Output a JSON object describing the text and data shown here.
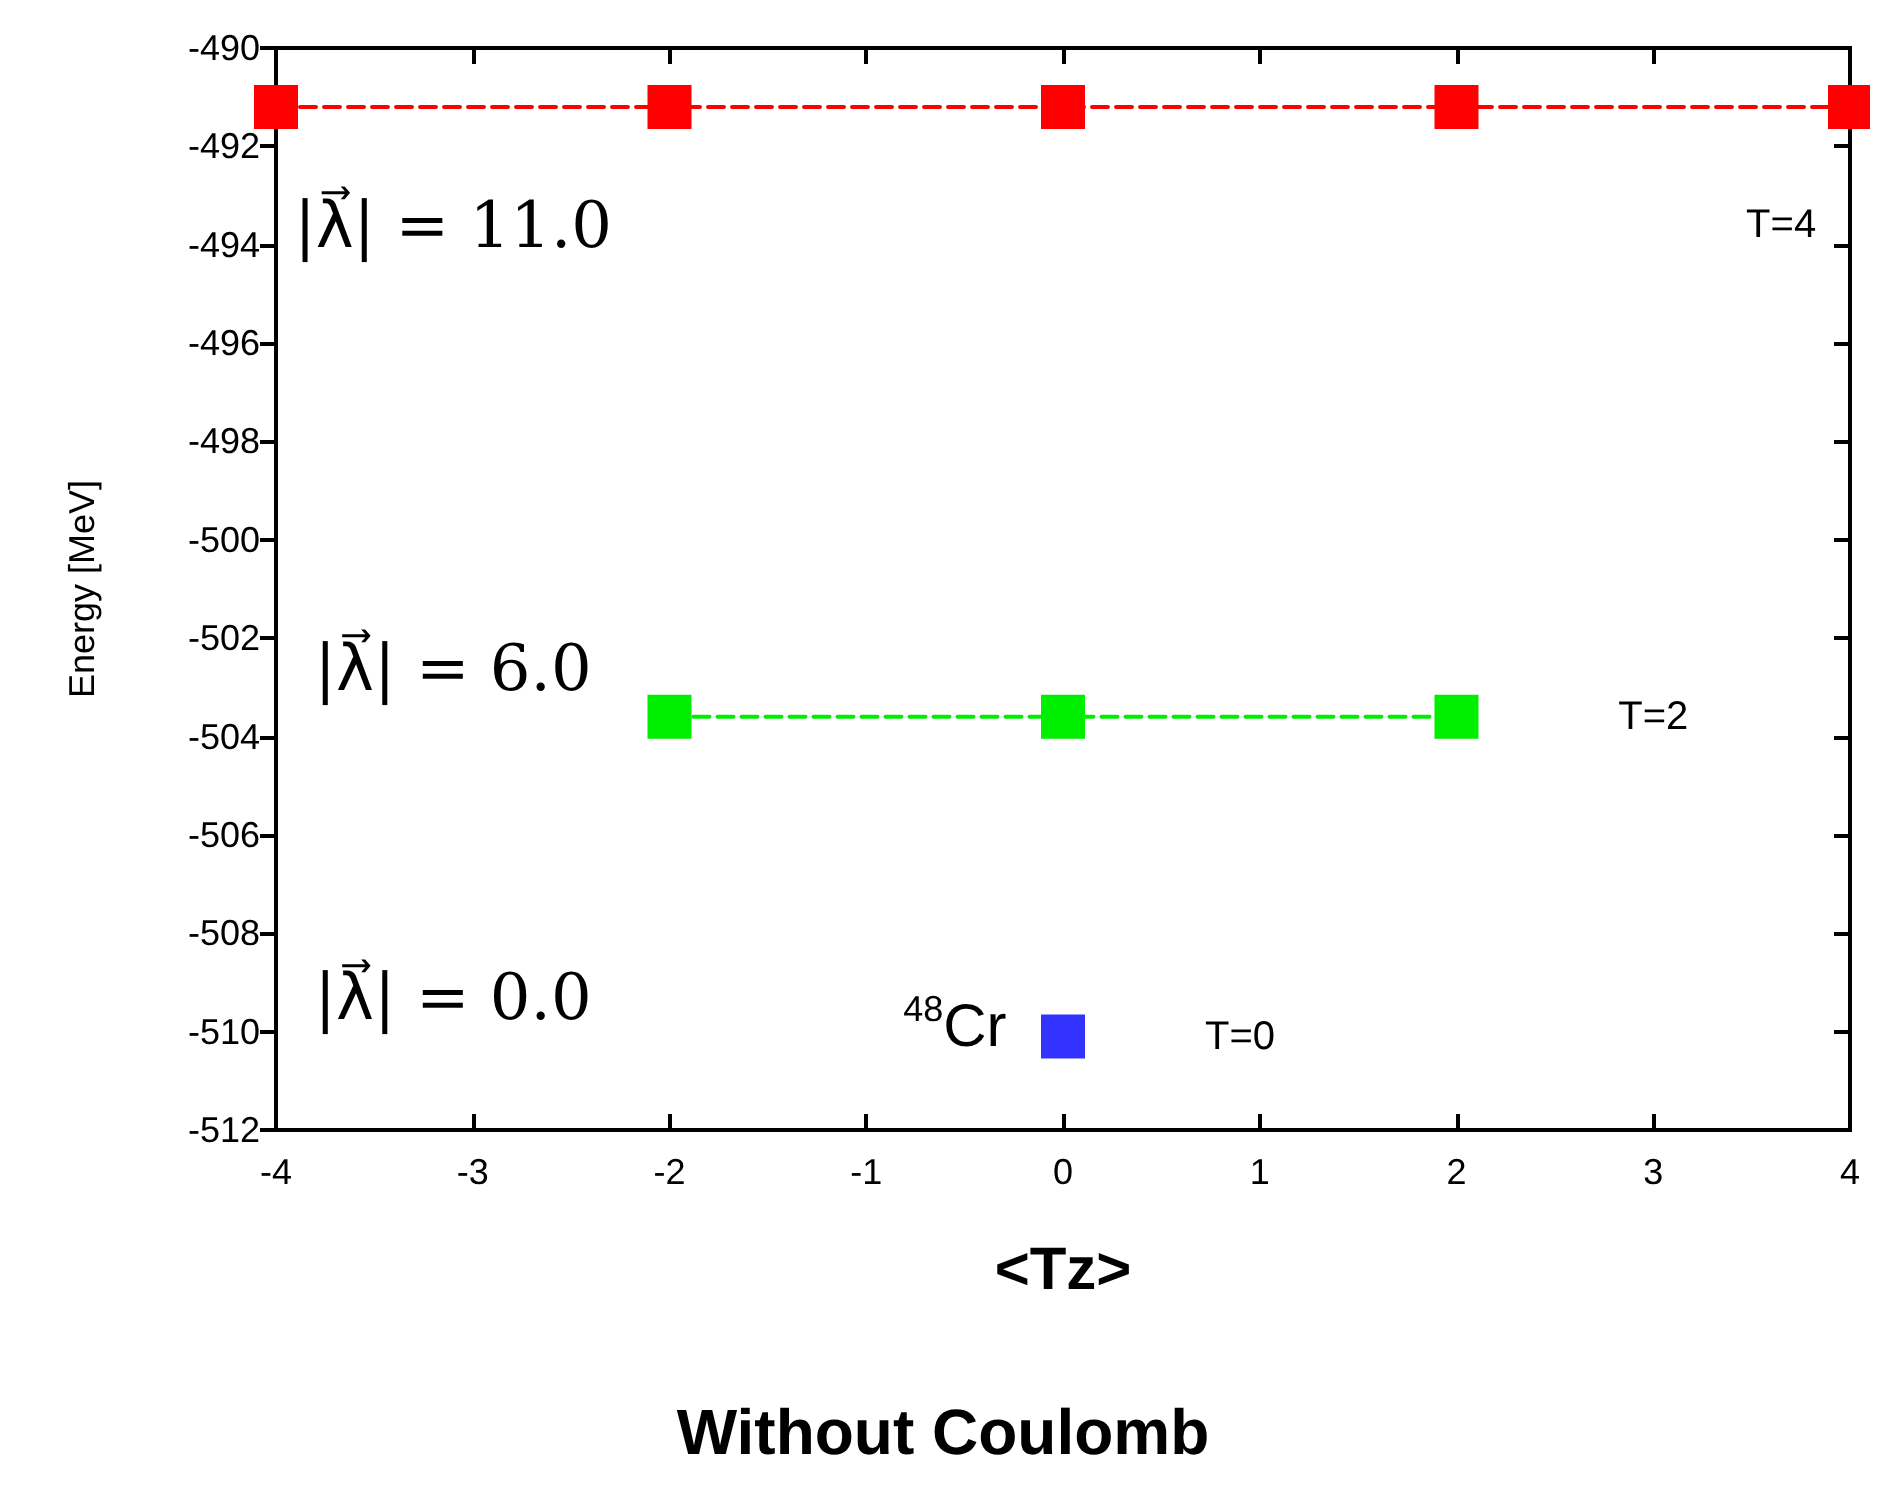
{
  "chart_data": {
    "type": "line",
    "title": "Without Coulomb",
    "xlabel": "<Tz>",
    "ylabel": "Energy [MeV]",
    "xlim": [
      -4,
      4
    ],
    "xticks": [
      -4,
      -3,
      -2,
      -1,
      0,
      1,
      2,
      3,
      4
    ],
    "ylim": [
      -512,
      -490
    ],
    "yticks": [
      -512,
      -510,
      -508,
      -506,
      -504,
      -502,
      -500,
      -498,
      -496,
      -494,
      -492,
      -490
    ],
    "grid": false,
    "marker": "square",
    "series": [
      {
        "color": "#ff0000",
        "x": [
          -4,
          -2,
          0,
          2,
          4
        ],
        "values": [
          -491.2,
          -491.2,
          -491.2,
          -491.2,
          -491.2
        ],
        "line_style": "dashed"
      },
      {
        "color": "#00ee00",
        "x": [
          -2,
          0,
          2
        ],
        "values": [
          -503.6,
          -503.6,
          -503.6
        ],
        "line_style": "dashed"
      },
      {
        "type": "scatter",
        "color": "#0000ff",
        "x": [
          0
        ],
        "values": [
          -510.1
        ]
      }
    ],
    "annotations": [
      "|λ⃗| = 11.0",
      "|λ⃗| = 6.0",
      "|λ⃗| = 0.0",
      "$^{48}$Cr",
      "T=4",
      "T=2",
      "T=0"
    ]
  }
}
